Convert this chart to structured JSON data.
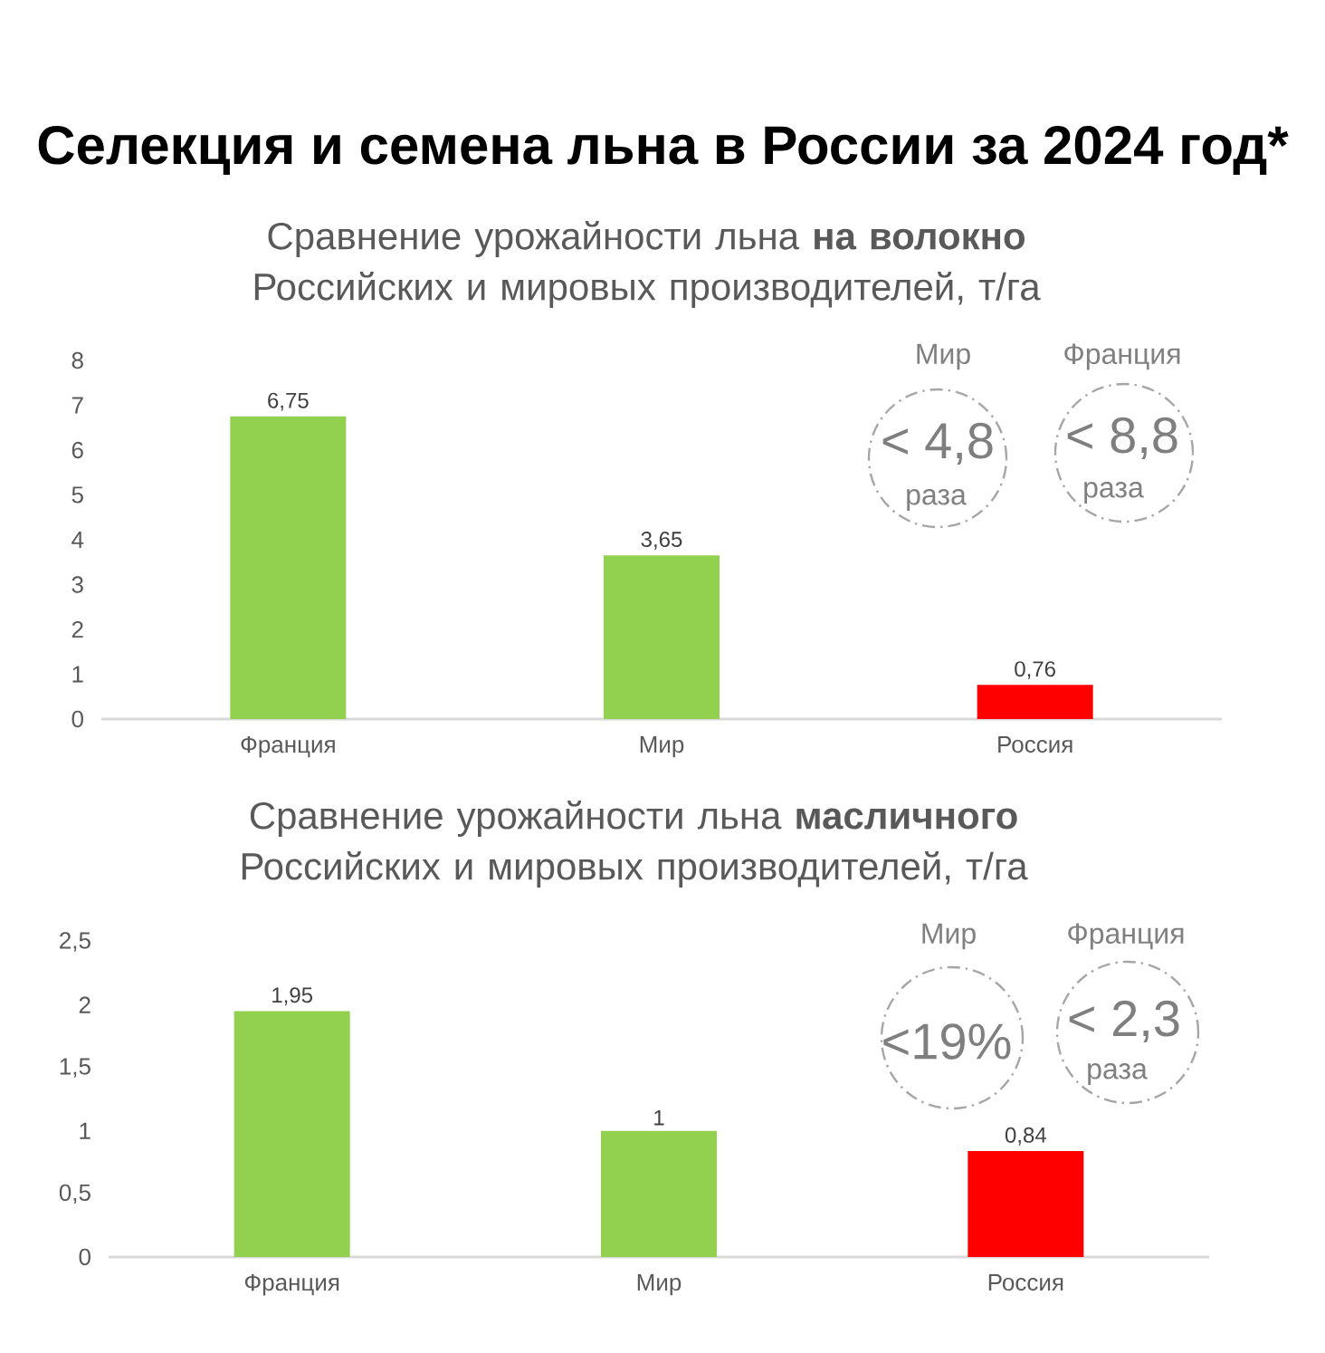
{
  "chart_data": [
    {
      "type": "bar",
      "title": "Селекция и семена льна в России за 2024 год*",
      "subtitle": "Сравнение урожайности льна **на волокно** Российских и мировых производителей, т/га",
      "categories": [
        "Франция",
        "Мир",
        "Россия"
      ],
      "values": [
        6.75,
        3.65,
        0.76
      ],
      "colors": [
        "#92d050",
        "#92d050",
        "#ff0000"
      ],
      "value_labels": [
        "6,75",
        "3,65",
        "0,76"
      ],
      "ylim": [
        0,
        8
      ],
      "yticks": [
        0,
        1,
        2,
        3,
        4,
        5,
        6,
        7,
        8
      ],
      "annotations": [
        "Мир",
        "< 4,8",
        "раза",
        "Франция",
        "< 8,8",
        "раза"
      ]
    },
    {
      "type": "bar",
      "subtitle": "Сравнение урожайности льна **масличного** Российских и мировых производителей, т/га",
      "categories": [
        "Франция",
        "Мир",
        "Россия"
      ],
      "values": [
        1.95,
        1,
        0.84
      ],
      "colors": [
        "#92d050",
        "#92d050",
        "#ff0000"
      ],
      "value_labels": [
        "1,95",
        "1",
        "0,84"
      ],
      "ylim": [
        0,
        2.5
      ],
      "yticks": [
        0,
        {
          "value": 0.5,
          "label": "0,5"
        },
        1,
        {
          "value": 1.5,
          "label": "1,5"
        },
        2,
        {
          "value": 2.5,
          "label": "2,5"
        }
      ],
      "annotations": [
        "Мир",
        "<19%",
        "Франция",
        "< 2,3",
        "раза"
      ]
    }
  ]
}
